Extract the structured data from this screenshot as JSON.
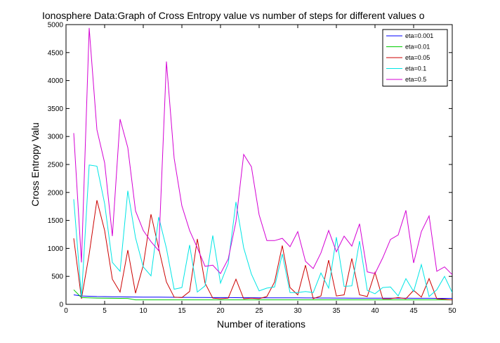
{
  "chart_data": {
    "type": "line",
    "title": "Ionosphere Data:Graph of Cross Entropy value vs number of steps for different values o",
    "xlabel": "Number of iterations",
    "ylabel": "Cross Entropy Valu",
    "xlim": [
      0,
      50
    ],
    "ylim": [
      0,
      5000
    ],
    "xticks": [
      0,
      5,
      10,
      15,
      20,
      25,
      30,
      35,
      40,
      45,
      50
    ],
    "yticks": [
      0,
      500,
      1000,
      1500,
      2000,
      2500,
      3000,
      3500,
      4000,
      4500,
      5000
    ],
    "grid": false,
    "legend_position": "top-right",
    "x": [
      1,
      2,
      3,
      4,
      5,
      6,
      7,
      8,
      9,
      10,
      11,
      12,
      13,
      14,
      15,
      16,
      17,
      18,
      19,
      20,
      21,
      22,
      23,
      24,
      25,
      26,
      27,
      28,
      29,
      30,
      31,
      32,
      33,
      34,
      35,
      36,
      37,
      38,
      39,
      40,
      41,
      42,
      43,
      44,
      45,
      46,
      47,
      48,
      49,
      50
    ],
    "series": [
      {
        "name": "eta=0.001",
        "color": "#0000ff",
        "values": [
          170,
          150,
          145,
          140,
          138,
          135,
          134,
          132,
          131,
          130,
          129,
          128,
          127,
          126,
          125,
          124,
          123,
          122,
          121,
          120,
          120,
          119,
          118,
          118,
          117,
          117,
          116,
          116,
          115,
          115,
          114,
          114,
          113,
          113,
          112,
          112,
          111,
          111,
          110,
          110,
          110,
          109,
          109,
          109,
          108,
          108,
          108,
          107,
          107,
          107
        ]
      },
      {
        "name": "eta=0.01",
        "color": "#00cc00",
        "values": [
          260,
          120,
          115,
          112,
          110,
          108,
          107,
          106,
          80,
          80,
          80,
          80,
          80,
          80,
          80,
          80,
          80,
          80,
          80,
          80,
          80,
          80,
          80,
          80,
          80,
          80,
          80,
          80,
          80,
          80,
          80,
          80,
          80,
          80,
          80,
          80,
          80,
          80,
          80,
          80,
          80,
          80,
          80,
          80,
          80,
          80,
          80,
          80,
          80,
          80
        ]
      },
      {
        "name": "eta=0.05",
        "color": "#cc0000",
        "values": [
          1180,
          100,
          900,
          1860,
          1320,
          450,
          220,
          970,
          200,
          700,
          1610,
          1000,
          400,
          130,
          120,
          230,
          1170,
          380,
          110,
          100,
          110,
          450,
          100,
          110,
          100,
          140,
          400,
          1050,
          300,
          170,
          700,
          100,
          150,
          790,
          150,
          170,
          820,
          170,
          140,
          570,
          100,
          100,
          120,
          100,
          250,
          130,
          460,
          100,
          90,
          80
        ]
      },
      {
        "name": "eta=0.1",
        "color": "#00e5e5",
        "values": [
          1880,
          120,
          2490,
          2470,
          1800,
          750,
          590,
          2030,
          1190,
          670,
          510,
          1560,
          1000,
          270,
          300,
          1060,
          220,
          330,
          1230,
          380,
          730,
          1830,
          1010,
          540,
          240,
          290,
          310,
          900,
          210,
          210,
          230,
          210,
          560,
          290,
          1200,
          320,
          330,
          1130,
          250,
          190,
          300,
          310,
          150,
          460,
          230,
          710,
          140,
          260,
          500,
          210
        ]
      },
      {
        "name": "eta=0.5",
        "color": "#d400d4",
        "values": [
          3060,
          750,
          4940,
          3120,
          2530,
          1220,
          3310,
          2800,
          1670,
          1320,
          1120,
          960,
          4340,
          2610,
          1760,
          1320,
          1010,
          680,
          700,
          550,
          810,
          1480,
          2680,
          2460,
          1600,
          1140,
          1140,
          1180,
          1030,
          1300,
          770,
          640,
          920,
          1320,
          940,
          1220,
          1040,
          1440,
          580,
          550,
          830,
          1160,
          1240,
          1680,
          740,
          1300,
          1580,
          590,
          670,
          530
        ]
      }
    ]
  }
}
